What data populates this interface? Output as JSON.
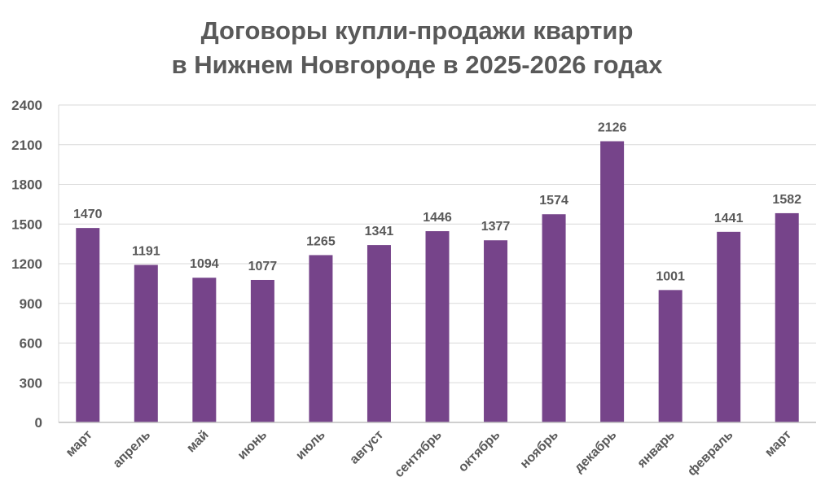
{
  "chart_data": {
    "type": "bar",
    "title_line1": "Договоры купли-продажи квартир",
    "title_line2": "в Нижнем Новгороде в 2025-2026 годах",
    "xlabel": "",
    "ylabel": "",
    "ylim": [
      0,
      2400
    ],
    "yticks": [
      0,
      300,
      600,
      900,
      1200,
      1500,
      1800,
      2100,
      2400
    ],
    "grid": true,
    "categories": [
      "март",
      "апрель",
      "май",
      "июнь",
      "июль",
      "август",
      "сентябрь",
      "октябрь",
      "ноябрь",
      "декабрь",
      "январь",
      "февраль",
      "март"
    ],
    "values": [
      1470,
      1191,
      1094,
      1077,
      1265,
      1341,
      1446,
      1377,
      1574,
      2126,
      1001,
      1441,
      1582
    ],
    "bar_color": "#76448A",
    "grid_color": "#D9D9D9"
  }
}
